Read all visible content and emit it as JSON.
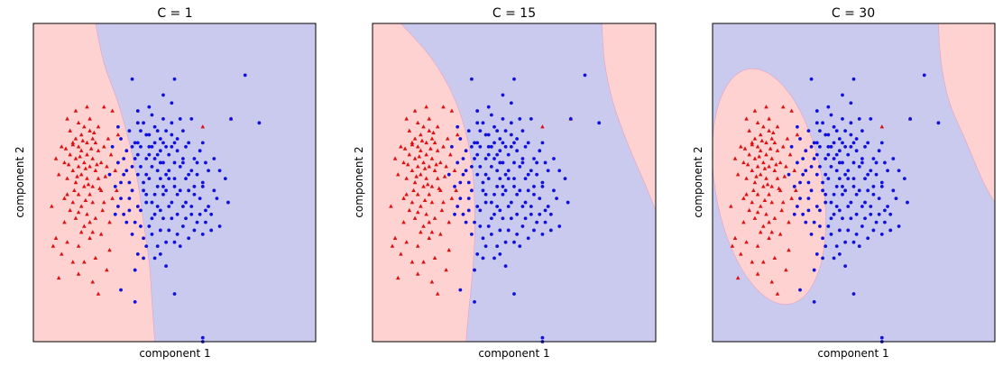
{
  "colors": {
    "class_0_region": "#ffd2d2",
    "class_1_region": "#cacaee",
    "class_0_points": "#dd1111",
    "class_1_points": "#1111dd",
    "axes_edge": "#000000"
  },
  "chart_data": [
    {
      "type": "scatter",
      "title": "C = 1",
      "xlabel": "component 1",
      "ylabel": "component 2",
      "xlim": [
        -4,
        6
      ],
      "ylim": [
        -4,
        4
      ],
      "grid": false,
      "ticks": "hidden",
      "region_colors": [
        "#ffd2d2",
        "#cacaee"
      ],
      "decision_boundary": {
        "type": "curve",
        "points": [
          [
            -1.8,
            4.0
          ],
          [
            -1.5,
            3.0
          ],
          [
            -1.0,
            2.0
          ],
          [
            -0.6,
            1.0
          ],
          [
            -0.3,
            0.0
          ],
          [
            -0.1,
            -1.0
          ],
          [
            0.1,
            -2.0
          ],
          [
            0.2,
            -3.0
          ],
          [
            0.3,
            -4.0
          ]
        ]
      },
      "series": [
        {
          "marker": "triangle",
          "color": "#dd1111",
          "values_ref": "class_0"
        },
        {
          "marker": "circle",
          "color": "#1111dd",
          "values_ref": "class_1"
        }
      ]
    },
    {
      "type": "scatter",
      "title": "C = 15",
      "xlabel": "component 1",
      "ylabel": "component 2",
      "xlim": [
        -4,
        6
      ],
      "ylim": [
        -4,
        4
      ],
      "grid": false,
      "ticks": "hidden",
      "region_colors": [
        "#ffd2d2",
        "#cacaee"
      ],
      "decision_boundary": {
        "type": "curves",
        "left": [
          [
            -3.0,
            4.0
          ],
          [
            -2.0,
            3.2
          ],
          [
            -1.3,
            2.4
          ],
          [
            -0.8,
            1.5
          ],
          [
            -0.5,
            0.5
          ],
          [
            -0.4,
            -0.5
          ],
          [
            -0.4,
            -1.5
          ],
          [
            -0.5,
            -2.5
          ],
          [
            -0.6,
            -3.2
          ],
          [
            -0.7,
            -4.0
          ]
        ],
        "right": [
          [
            4.1,
            4.0
          ],
          [
            4.2,
            3.0
          ],
          [
            4.5,
            2.0
          ],
          [
            5.0,
            1.0
          ],
          [
            5.6,
            0.0
          ],
          [
            6.0,
            -0.7
          ]
        ]
      },
      "series": [
        {
          "marker": "triangle",
          "color": "#dd1111",
          "values_ref": "class_0"
        },
        {
          "marker": "circle",
          "color": "#1111dd",
          "values_ref": "class_1"
        }
      ]
    },
    {
      "type": "scatter",
      "title": "C = 30",
      "xlabel": "component 1",
      "ylabel": "component 2",
      "xlim": [
        -4,
        6
      ],
      "ylim": [
        -4,
        4
      ],
      "grid": false,
      "ticks": "hidden",
      "region_colors": [
        "#ffd2d2",
        "#cacaee"
      ],
      "decision_boundary": {
        "type": "ellipse_and_curve",
        "ellipse": {
          "cx": -2.0,
          "cy": -0.1,
          "rx": 1.9,
          "ry": 3.0,
          "rotation_deg": -10
        },
        "right": [
          [
            4.0,
            4.0
          ],
          [
            4.1,
            3.0
          ],
          [
            4.4,
            2.0
          ],
          [
            5.0,
            1.0
          ],
          [
            5.6,
            0.0
          ],
          [
            6.0,
            -0.5
          ]
        ]
      },
      "series": [
        {
          "marker": "triangle",
          "color": "#dd1111",
          "values_ref": "class_0"
        },
        {
          "marker": "circle",
          "color": "#1111dd",
          "values_ref": "class_1"
        }
      ]
    }
  ],
  "points": {
    "class_0": [
      [
        -2.5,
        1.1
      ],
      [
        -2.3,
        1.2
      ],
      [
        -2.1,
        1.0
      ],
      [
        -2.4,
        0.9
      ],
      [
        -2.0,
        1.3
      ],
      [
        -2.2,
        1.4
      ],
      [
        -1.9,
        1.1
      ],
      [
        -2.6,
        1.0
      ],
      [
        -2.3,
        0.8
      ],
      [
        -1.8,
        1.0
      ],
      [
        -2.1,
        0.7
      ],
      [
        -2.5,
        0.6
      ],
      [
        -2.2,
        0.5
      ],
      [
        -1.9,
        0.6
      ],
      [
        -2.7,
        0.7
      ],
      [
        -2.4,
        0.4
      ],
      [
        -2.0,
        0.4
      ],
      [
        -1.7,
        0.8
      ],
      [
        -2.3,
        0.2
      ],
      [
        -2.6,
        0.3
      ],
      [
        -2.1,
        0.1
      ],
      [
        -1.8,
        0.3
      ],
      [
        -2.9,
        0.5
      ],
      [
        -2.5,
        0.0
      ],
      [
        -2.2,
        -0.1
      ],
      [
        -1.9,
        -0.1
      ],
      [
        -2.8,
        0.1
      ],
      [
        -1.6,
        0.5
      ],
      [
        -2.4,
        -0.3
      ],
      [
        -2.0,
        -0.3
      ],
      [
        -1.7,
        0.1
      ],
      [
        -2.6,
        -0.5
      ],
      [
        -2.3,
        -0.6
      ],
      [
        -1.9,
        -0.5
      ],
      [
        -2.8,
        -0.3
      ],
      [
        -2.1,
        -0.8
      ],
      [
        -1.6,
        -0.2
      ],
      [
        -2.5,
        -0.9
      ],
      [
        -1.8,
        -0.9
      ],
      [
        -2.2,
        -1.1
      ],
      [
        -2.9,
        -1.0
      ],
      [
        -1.5,
        0.9
      ],
      [
        -1.4,
        0.4
      ],
      [
        -1.5,
        -0.5
      ],
      [
        -2.7,
        1.3
      ],
      [
        -2.4,
        1.5
      ],
      [
        -2.0,
        1.6
      ],
      [
        -1.7,
        1.4
      ],
      [
        -3.0,
        0.9
      ],
      [
        -3.1,
        0.2
      ],
      [
        -2.9,
        -0.4
      ],
      [
        -3.2,
        -1.4
      ],
      [
        -2.8,
        -1.5
      ],
      [
        -2.4,
        -1.6
      ],
      [
        -2.0,
        -1.4
      ],
      [
        -1.6,
        -1.3
      ],
      [
        -3.0,
        -1.8
      ],
      [
        -2.6,
        -2.0
      ],
      [
        -2.2,
        -2.0
      ],
      [
        -1.8,
        -1.9
      ],
      [
        -3.3,
        -1.6
      ],
      [
        -1.3,
        -1.7
      ],
      [
        -3.1,
        -2.4
      ],
      [
        -2.4,
        -2.3
      ],
      [
        -1.9,
        -2.5
      ],
      [
        -1.4,
        -2.2
      ],
      [
        -1.7,
        -2.8
      ],
      [
        -2.6,
        0.95
      ],
      [
        -2.35,
        0.65
      ],
      [
        -2.15,
        0.35
      ],
      [
        -1.95,
        0.85
      ],
      [
        -2.45,
        0.15
      ],
      [
        -2.05,
        -0.05
      ],
      [
        -1.75,
        0.45
      ],
      [
        -2.55,
        -0.2
      ],
      [
        -2.25,
        1.05
      ],
      [
        -1.85,
        1.25
      ],
      [
        -2.75,
        0.45
      ],
      [
        -2.15,
        -0.45
      ],
      [
        -1.65,
        -0.15
      ],
      [
        -2.4,
        -0.75
      ],
      [
        -2.0,
        -1.0
      ],
      [
        -1.55,
        -0.7
      ],
      [
        -2.7,
        -0.7
      ],
      [
        -2.3,
        -1.25
      ],
      [
        -1.9,
        -1.25
      ],
      [
        -2.85,
        0.85
      ],
      [
        -1.45,
        0.15
      ],
      [
        -1.35,
        1.1
      ],
      [
        -1.2,
        -0.4
      ],
      [
        -1.3,
        -1.0
      ],
      [
        -1.1,
        0.3
      ],
      [
        -1.0,
        1.2
      ],
      [
        -1.2,
        1.8
      ],
      [
        -2.1,
        1.9
      ],
      [
        -2.5,
        1.8
      ],
      [
        -2.8,
        1.6
      ],
      [
        3.0,
        1.6
      ],
      [
        2.0,
        1.4
      ],
      [
        -1.5,
        1.9
      ],
      [
        -1.25,
        0.7
      ],
      [
        -3.2,
        0.6
      ],
      [
        -3.35,
        -0.6
      ],
      [
        -1.05,
        -0.2
      ]
    ],
    "class_1": [
      [
        -0.5,
        2.6
      ],
      [
        -0.3,
        1.5
      ],
      [
        -0.2,
        1.3
      ],
      [
        0.0,
        1.2
      ],
      [
        0.3,
        1.4
      ],
      [
        0.5,
        1.1
      ],
      [
        0.1,
        0.9
      ],
      [
        -0.4,
        1.0
      ],
      [
        0.7,
        0.9
      ],
      [
        0.9,
        1.2
      ],
      [
        0.4,
        0.7
      ],
      [
        0.0,
        0.6
      ],
      [
        -0.3,
        0.7
      ],
      [
        1.1,
        0.8
      ],
      [
        0.6,
        0.5
      ],
      [
        0.2,
        0.4
      ],
      [
        1.3,
        0.5
      ],
      [
        0.8,
        0.3
      ],
      [
        -0.5,
        0.4
      ],
      [
        1.5,
        0.2
      ],
      [
        1.0,
        0.1
      ],
      [
        0.5,
        0.1
      ],
      [
        0.1,
        0.1
      ],
      [
        -0.3,
        0.2
      ],
      [
        1.7,
        -0.1
      ],
      [
        1.2,
        -0.2
      ],
      [
        0.7,
        -0.2
      ],
      [
        0.3,
        -0.3
      ],
      [
        -0.1,
        -0.2
      ],
      [
        1.9,
        -0.4
      ],
      [
        1.4,
        -0.5
      ],
      [
        0.9,
        -0.5
      ],
      [
        0.4,
        -0.6
      ],
      [
        0.0,
        -0.5
      ],
      [
        2.1,
        -0.7
      ],
      [
        1.6,
        -0.8
      ],
      [
        1.1,
        -0.8
      ],
      [
        0.6,
        -0.9
      ],
      [
        0.2,
        -0.9
      ],
      [
        2.3,
        -0.8
      ],
      [
        1.8,
        -1.0
      ],
      [
        1.3,
        -1.1
      ],
      [
        0.8,
        -1.2
      ],
      [
        2.5,
        -0.4
      ],
      [
        2.0,
        -1.3
      ],
      [
        1.5,
        -1.4
      ],
      [
        1.0,
        -1.5
      ],
      [
        -0.6,
        1.3
      ],
      [
        -0.7,
        0.8
      ],
      [
        -0.8,
        0.2
      ],
      [
        -0.6,
        -0.4
      ],
      [
        -0.9,
        1.1
      ],
      [
        -1.0,
        0.5
      ],
      [
        -1.1,
        -0.1
      ],
      [
        -0.8,
        -0.8
      ],
      [
        -1.2,
        0.9
      ],
      [
        -1.3,
        0.2
      ],
      [
        0.2,
        -1.3
      ],
      [
        0.9,
        2.0
      ],
      [
        1.6,
        1.6
      ],
      [
        2.0,
        1.0
      ],
      [
        2.4,
        0.6
      ],
      [
        2.8,
        0.1
      ],
      [
        2.6,
        -1.1
      ],
      [
        2.9,
        -0.5
      ],
      [
        -0.2,
        -0.7
      ],
      [
        0.4,
        -1.6
      ],
      [
        0.6,
        -0.3
      ],
      [
        1.2,
        0.4
      ],
      [
        0.8,
        0.7
      ],
      [
        0.3,
        1.0
      ],
      [
        -0.1,
        1.5
      ],
      [
        0.6,
        1.6
      ],
      [
        1.3,
        1.3
      ],
      [
        1.7,
        0.6
      ],
      [
        2.2,
        0.3
      ],
      [
        0.1,
        -1.1
      ],
      [
        -0.4,
        -1.0
      ],
      [
        1.9,
        0.8
      ],
      [
        0.0,
        -1.6
      ],
      [
        -0.5,
        -1.3
      ],
      [
        -0.3,
        -1.8
      ],
      [
        0.7,
        -2.1
      ],
      [
        -0.4,
        -2.2
      ],
      [
        1.4,
        0.9
      ],
      [
        0.2,
        1.7
      ],
      [
        1.0,
        0.5
      ],
      [
        0.5,
        -0.7
      ],
      [
        1.5,
        -0.2
      ],
      [
        2.0,
        -0.1
      ],
      [
        0.9,
        -0.9
      ],
      [
        1.8,
        0.2
      ],
      [
        2.2,
        -0.6
      ],
      [
        -0.2,
        0.9
      ],
      [
        0.4,
        1.3
      ],
      [
        -0.6,
        0.0
      ],
      [
        -0.9,
        -0.4
      ],
      [
        1.2,
        1.6
      ],
      [
        0.3,
        -1.9
      ],
      [
        0.1,
        0.7
      ],
      [
        0.7,
        0.2
      ],
      [
        1.1,
        -0.3
      ],
      [
        1.6,
        -0.6
      ],
      [
        2.4,
        -0.2
      ],
      [
        -0.7,
        -1.0
      ],
      [
        0.9,
        0.9
      ],
      [
        0.5,
        0.5
      ],
      [
        -0.5,
        -0.2
      ],
      [
        -0.3,
        -0.6
      ],
      [
        1.4,
        0.1
      ],
      [
        2.1,
        0.5
      ],
      [
        0.0,
        0.2
      ],
      [
        1.0,
        1.0
      ],
      [
        0.4,
        -0.1
      ],
      [
        -0.1,
        -1.4
      ],
      [
        0.6,
        2.2
      ],
      [
        0.2,
        0.9
      ],
      [
        1.3,
        -0.6
      ],
      [
        1.9,
        -0.8
      ],
      [
        0.8,
        -0.6
      ],
      [
        0.3,
        0.6
      ],
      [
        -0.2,
        0.4
      ],
      [
        -0.4,
        0.6
      ],
      [
        0.0,
        -0.3
      ],
      [
        0.5,
        0.8
      ],
      [
        1.6,
        0.3
      ],
      [
        1.1,
        1.1
      ],
      [
        -0.8,
        0.6
      ],
      [
        -0.6,
        -0.7
      ],
      [
        -0.9,
        0.0
      ],
      [
        0.2,
        -0.5
      ],
      [
        0.7,
        -1.5
      ],
      [
        2.3,
        -1.2
      ],
      [
        1.2,
        -1.6
      ],
      [
        0.5,
        -1.2
      ],
      [
        -0.2,
        -1.1
      ],
      [
        1.5,
        1.0
      ],
      [
        0.9,
        1.5
      ],
      [
        0.1,
        1.2
      ],
      [
        -0.3,
        1.0
      ],
      [
        2.6,
        0.3
      ],
      [
        0.6,
        -0.1
      ],
      [
        1.7,
        -0.3
      ],
      [
        0.4,
        0.3
      ],
      [
        1.0,
        -0.1
      ],
      [
        -0.7,
        0.3
      ],
      [
        -1.0,
        -0.6
      ],
      [
        0.3,
        -0.8
      ],
      [
        1.4,
        -0.9
      ],
      [
        2.0,
        0.0
      ],
      [
        0.8,
        0.1
      ],
      [
        -0.5,
        0.9
      ],
      [
        -0.1,
        0.0
      ],
      [
        0.6,
        1.0
      ],
      [
        1.3,
        0.6
      ],
      [
        1.8,
        0.5
      ],
      [
        -0.1,
        -1.9
      ],
      [
        0.5,
        -1.8
      ],
      [
        1.1,
        -1.3
      ],
      [
        -0.3,
        1.8
      ],
      [
        0.1,
        1.9
      ],
      [
        1.7,
        -1.2
      ],
      [
        2.1,
        -1.0
      ],
      [
        -1.0,
        1.4
      ],
      [
        -1.1,
        -0.8
      ],
      [
        1.0,
        2.6
      ],
      [
        0.7,
        1.3
      ],
      [
        1.0,
        -2.8
      ],
      [
        3.5,
        2.7
      ],
      [
        3.0,
        1.6
      ],
      [
        4.0,
        1.5
      ],
      [
        -0.9,
        -2.7
      ],
      [
        -0.4,
        -3.0
      ],
      [
        2.0,
        -4.0
      ],
      [
        2.0,
        -3.9
      ]
    ]
  }
}
